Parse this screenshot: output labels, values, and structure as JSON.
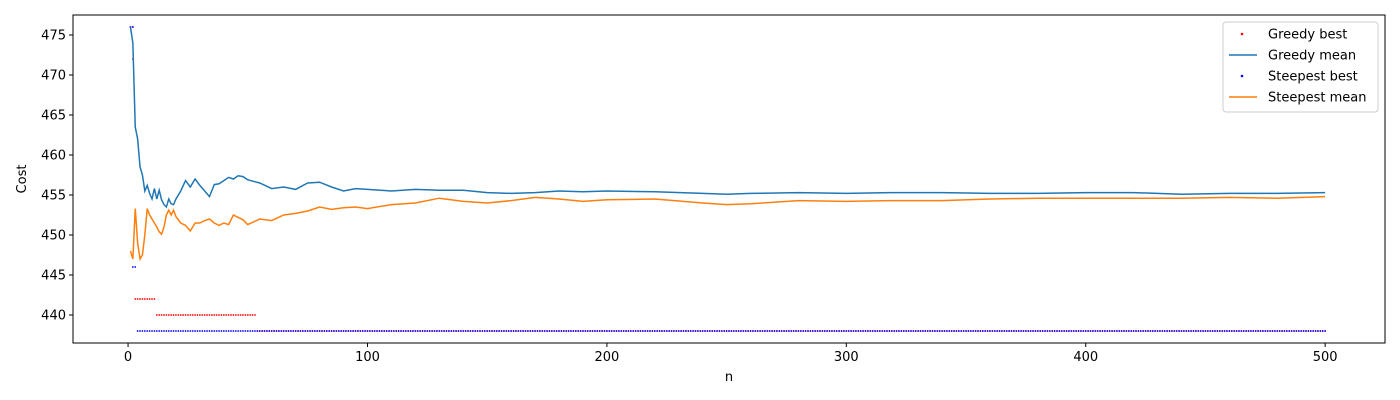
{
  "chart_data": {
    "type": "line",
    "title": "",
    "xlabel": "n",
    "ylabel": "Cost",
    "xlim": [
      -23,
      525
    ],
    "ylim": [
      436.5,
      477.5
    ],
    "xticks": [
      0,
      100,
      200,
      300,
      400,
      500
    ],
    "yticks": [
      440,
      445,
      450,
      455,
      460,
      465,
      470,
      475
    ],
    "grid": false,
    "legend": "top-right",
    "colors": {
      "greedy_best": "#ff0000",
      "greedy_mean": "#1f77b4",
      "steepest_best": "#0000ff",
      "steepest_mean": "#ff7f0e"
    },
    "series": [
      {
        "name": "Greedy best",
        "kind": "points",
        "color": "#ff0000",
        "segments": [
          {
            "x_from": 1,
            "x_to": 2,
            "y": 476
          },
          {
            "x_from": 2,
            "x_to": 2,
            "y": 472
          },
          {
            "x_from": 3,
            "x_to": 11,
            "y": 442
          },
          {
            "x_from": 12,
            "x_to": 53,
            "y": 440
          },
          {
            "x_from": 54,
            "x_to": 500,
            "y": 438
          }
        ]
      },
      {
        "name": "Greedy mean",
        "kind": "line",
        "color": "#1f77b4",
        "x": [
          1,
          2,
          3,
          4,
          5,
          6,
          7,
          8,
          9,
          10,
          11,
          12,
          13,
          14,
          15,
          16,
          17,
          18,
          19,
          20,
          22,
          24,
          26,
          28,
          30,
          32,
          34,
          36,
          38,
          40,
          42,
          44,
          46,
          48,
          50,
          55,
          60,
          65,
          70,
          75,
          80,
          85,
          90,
          95,
          100,
          110,
          120,
          130,
          140,
          150,
          160,
          170,
          180,
          190,
          200,
          220,
          240,
          250,
          260,
          280,
          300,
          320,
          340,
          360,
          380,
          400,
          420,
          440,
          460,
          480,
          500
        ],
        "y": [
          476,
          474,
          463.5,
          462,
          458.5,
          457.5,
          455.5,
          456.2,
          455.2,
          454.5,
          455.8,
          454.5,
          455.6,
          454.4,
          453.8,
          453.5,
          454.5,
          453.9,
          453.8,
          454.5,
          455.5,
          456.8,
          456.0,
          457.0,
          456.2,
          455.5,
          454.8,
          456.3,
          456.4,
          456.8,
          457.2,
          457.0,
          457.4,
          457.3,
          456.9,
          456.5,
          455.8,
          456.0,
          455.7,
          456.5,
          456.6,
          456.0,
          455.5,
          455.8,
          455.7,
          455.5,
          455.7,
          455.6,
          455.6,
          455.3,
          455.2,
          455.3,
          455.5,
          455.4,
          455.5,
          455.4,
          455.2,
          455.1,
          455.2,
          455.3,
          455.2,
          455.3,
          455.3,
          455.2,
          455.2,
          455.3,
          455.3,
          455.1,
          455.2,
          455.2,
          455.3
        ]
      },
      {
        "name": "Steepest best",
        "kind": "points",
        "color": "#0000ff",
        "segments": [
          {
            "x_from": 1,
            "x_to": 2,
            "y": 476
          },
          {
            "x_from": 2,
            "x_to": 3,
            "y": 446
          },
          {
            "x_from": 4,
            "x_to": 500,
            "y": 438
          }
        ]
      },
      {
        "name": "Steepest mean",
        "kind": "line",
        "color": "#ff7f0e",
        "x": [
          1,
          2,
          3,
          4,
          5,
          6,
          7,
          8,
          9,
          10,
          11,
          12,
          13,
          14,
          15,
          16,
          17,
          18,
          19,
          20,
          22,
          24,
          26,
          28,
          30,
          32,
          34,
          36,
          38,
          40,
          42,
          44,
          46,
          48,
          50,
          55,
          60,
          65,
          70,
          75,
          80,
          85,
          90,
          95,
          100,
          110,
          120,
          130,
          140,
          150,
          160,
          170,
          180,
          190,
          200,
          220,
          240,
          250,
          260,
          280,
          300,
          320,
          340,
          360,
          380,
          400,
          420,
          440,
          460,
          480,
          500
        ],
        "y": [
          448,
          447,
          453.3,
          449,
          447,
          447.5,
          450,
          453.3,
          452.5,
          452,
          451.5,
          451,
          450.4,
          450.1,
          451,
          452.5,
          453.1,
          452.5,
          453.1,
          452.3,
          451.5,
          451.2,
          450.5,
          451.5,
          451.5,
          451.8,
          452.0,
          451.5,
          451.2,
          451.5,
          451.3,
          452.5,
          452.2,
          451.9,
          451.3,
          452.0,
          451.8,
          452.5,
          452.7,
          453.0,
          453.5,
          453.2,
          453.4,
          453.5,
          453.3,
          453.8,
          454.0,
          454.6,
          454.2,
          454.0,
          454.3,
          454.7,
          454.5,
          454.2,
          454.4,
          454.5,
          454.0,
          453.8,
          453.9,
          454.3,
          454.2,
          454.3,
          454.3,
          454.5,
          454.6,
          454.6,
          454.6,
          454.6,
          454.7,
          454.6,
          454.8
        ]
      }
    ]
  }
}
